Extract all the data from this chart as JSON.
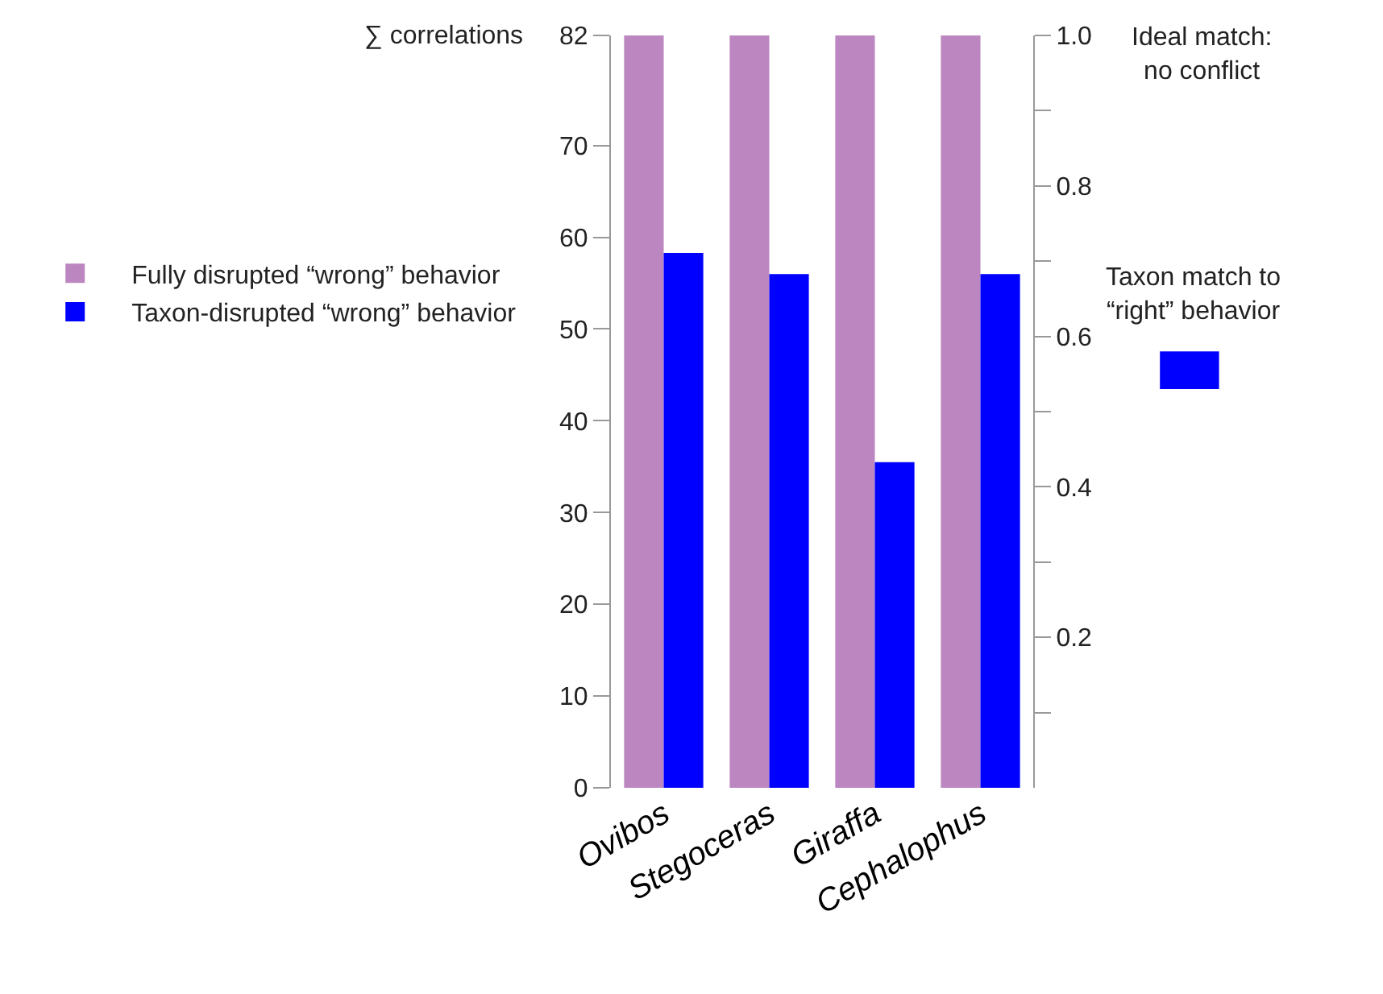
{
  "chart_data": {
    "type": "bar",
    "ylabel": "∑ correlations",
    "categories": [
      "Ovibos",
      "Stegoceras",
      "Giraffa",
      "Cephalophus"
    ],
    "series": [
      {
        "name": "Fully disrupted “wrong” behavior",
        "color": "#bc86c0",
        "values": [
          82,
          82,
          82,
          82
        ]
      },
      {
        "name": "Taxon-disrupted “wrong” behavior",
        "color": "#0000ff",
        "values": [
          58.3,
          56,
          35.5,
          56
        ]
      }
    ],
    "ylim": [
      0,
      82
    ],
    "yticks": [
      0,
      10,
      20,
      30,
      40,
      50,
      60,
      70,
      82
    ],
    "y2lim": [
      0,
      1
    ],
    "y2ticks": [
      {
        "value": 0.1,
        "label": null
      },
      0.2,
      {
        "value": 0.3,
        "label": null
      },
      0.4,
      {
        "value": 0.5,
        "label": null
      },
      0.6,
      {
        "value": 0.7,
        "label": null
      },
      0.8,
      {
        "value": 0.9,
        "label": null
      },
      {
        "value": 1.0,
        "label": "1.0"
      }
    ],
    "annotations": [
      "Ideal match:\nno conflict",
      "Taxon match to\n“right” behavior"
    ],
    "legend": "left"
  }
}
